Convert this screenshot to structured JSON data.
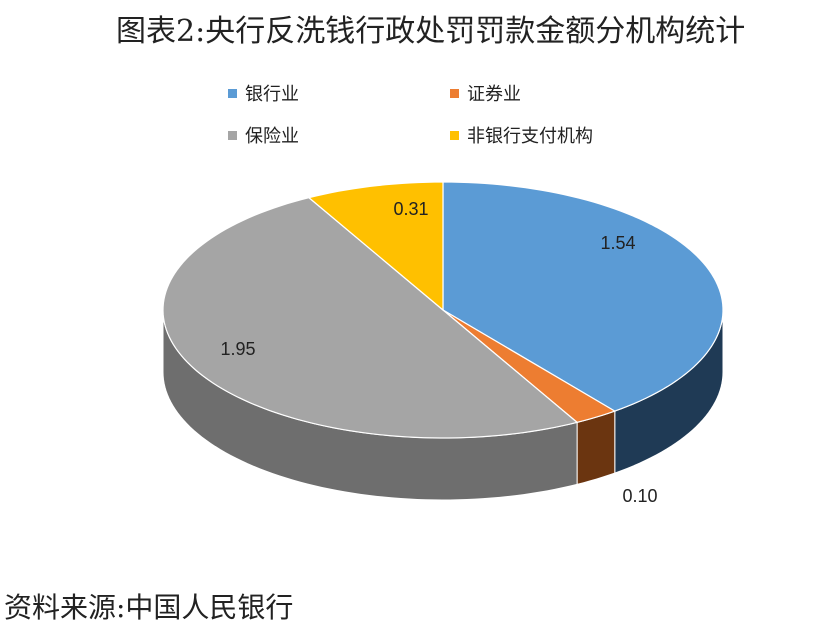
{
  "title": "图表2:央行反洗钱行政处罚罚款金额分机构统计",
  "source": "资料来源:中国人民银行",
  "chart_data": {
    "type": "pie",
    "style": "3d",
    "legend_position": "top",
    "slices": [
      {
        "label": "银行业",
        "value": 1.54,
        "value_label": "1.54",
        "color": "#5B9BD5",
        "side_color": "#1F3A55"
      },
      {
        "label": "证券业",
        "value": 0.1,
        "value_label": "0.10",
        "color": "#ED7D31",
        "side_color": "#6B3510"
      },
      {
        "label": "保险业",
        "value": 1.95,
        "value_label": "1.95",
        "color": "#A5A5A5",
        "side_color": "#6E6E6E"
      },
      {
        "label": "非银行支付机构",
        "value": 0.31,
        "value_label": "0.31",
        "color": "#FFC000",
        "side_color": "#8A6A00"
      }
    ]
  }
}
